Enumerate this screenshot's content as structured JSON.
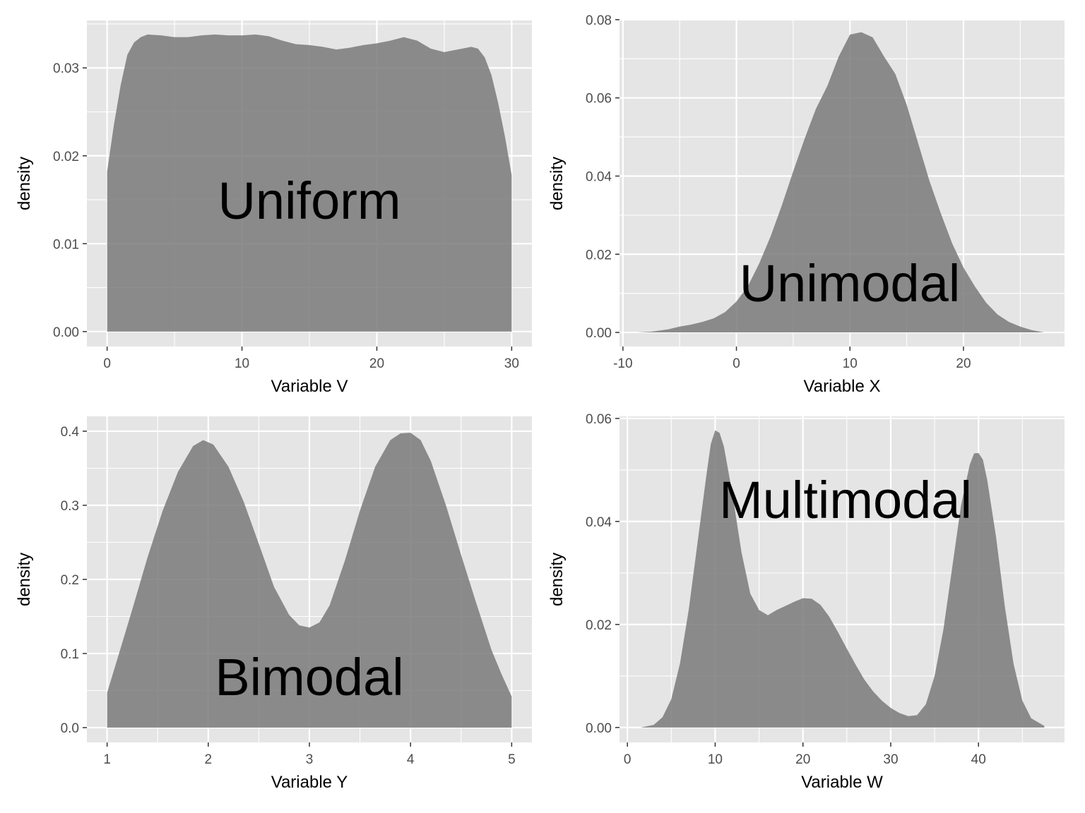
{
  "style": {
    "panel_bg": "#e5e5e5",
    "grid_color": "#ffffff",
    "fill_color": "#7a7a7a",
    "fill_opacity": 0.85,
    "tick_color": "#333333",
    "text_color": "#000000",
    "tick_text_color": "#4d4d4d"
  },
  "chart_data": [
    {
      "type": "area",
      "title": "",
      "xlabel": "Variable V",
      "ylabel": "density",
      "annotation": "Uniform",
      "xlim": [
        -1.5,
        31.5
      ],
      "ylim": [
        -0.0017,
        0.0354
      ],
      "x_ticks": [
        0,
        10,
        20,
        30
      ],
      "x_tick_labels": [
        "0",
        "10",
        "20",
        "30"
      ],
      "y_ticks": [
        0,
        0.01,
        0.02,
        0.03
      ],
      "y_tick_labels": [
        "0.00",
        "0.01",
        "0.02",
        "0.03"
      ],
      "grid": true,
      "series": [
        {
          "x": [
            0,
            0.5,
            1,
            1.5,
            2,
            2.5,
            3,
            4,
            5,
            6,
            7,
            8,
            9,
            10,
            11,
            12,
            13,
            14,
            15,
            16,
            17,
            18,
            19,
            20,
            21,
            22,
            23,
            24,
            25,
            26,
            27,
            27.5,
            28,
            28.5,
            29,
            29.5,
            30
          ],
          "y": [
            0.0182,
            0.0235,
            0.028,
            0.0315,
            0.0329,
            0.0335,
            0.0338,
            0.0337,
            0.0335,
            0.0335,
            0.0337,
            0.0338,
            0.0337,
            0.0337,
            0.0338,
            0.0336,
            0.0331,
            0.0327,
            0.0326,
            0.0324,
            0.0321,
            0.0323,
            0.0326,
            0.0328,
            0.0331,
            0.0335,
            0.0331,
            0.0322,
            0.0318,
            0.0321,
            0.0324,
            0.0322,
            0.0312,
            0.0292,
            0.026,
            0.0222,
            0.0178
          ]
        }
      ]
    },
    {
      "type": "area",
      "title": "",
      "xlabel": "Variable X",
      "ylabel": "density",
      "annotation": "Unimodal",
      "xlim": [
        -10.3,
        28.9
      ],
      "ylim": [
        -0.0036,
        0.0798
      ],
      "x_ticks": [
        -10,
        0,
        10,
        20
      ],
      "x_tick_labels": [
        "-10",
        "0",
        "10",
        "20"
      ],
      "y_ticks": [
        0,
        0.02,
        0.04,
        0.06,
        0.08
      ],
      "y_tick_labels": [
        "0.00",
        "0.02",
        "0.04",
        "0.06",
        "0.08"
      ],
      "grid": true,
      "series": [
        {
          "x": [
            -8.8,
            -7.5,
            -6,
            -5,
            -4,
            -3,
            -2,
            -1,
            0,
            1,
            2,
            3,
            4,
            5,
            6,
            7,
            8,
            9,
            10,
            11,
            12,
            13,
            14,
            15,
            16,
            17,
            18,
            19,
            20,
            21,
            22,
            23,
            24,
            25,
            26,
            27.1
          ],
          "y": [
            0,
            0.0002,
            0.0008,
            0.0015,
            0.002,
            0.0027,
            0.0036,
            0.0052,
            0.0079,
            0.0118,
            0.0176,
            0.0245,
            0.0325,
            0.0412,
            0.0495,
            0.0572,
            0.063,
            0.0705,
            0.0762,
            0.0768,
            0.0755,
            0.0706,
            0.0661,
            0.0582,
            0.0485,
            0.0388,
            0.0305,
            0.0228,
            0.0166,
            0.0118,
            0.0076,
            0.0046,
            0.0027,
            0.0015,
            0.0006,
            0
          ]
        }
      ]
    },
    {
      "type": "area",
      "title": "",
      "xlabel": "Variable Y",
      "ylabel": "density",
      "annotation": "Bimodal",
      "xlim": [
        0.8,
        5.2
      ],
      "ylim": [
        -0.02,
        0.42
      ],
      "x_ticks": [
        1,
        2,
        3,
        4,
        5
      ],
      "x_tick_labels": [
        "1",
        "2",
        "3",
        "4",
        "5"
      ],
      "y_ticks": [
        0,
        0.1,
        0.2,
        0.3,
        0.4
      ],
      "y_tick_labels": [
        "0.0",
        "0.1",
        "0.2",
        "0.3",
        "0.4"
      ],
      "grid": true,
      "series": [
        {
          "x": [
            1,
            1.1,
            1.25,
            1.4,
            1.55,
            1.7,
            1.85,
            1.95,
            2.05,
            2.2,
            2.35,
            2.5,
            2.65,
            2.8,
            2.9,
            3,
            3.1,
            3.2,
            3.35,
            3.5,
            3.65,
            3.8,
            3.9,
            4,
            4.1,
            4.2,
            4.35,
            4.5,
            4.65,
            4.8,
            4.9,
            5
          ],
          "y": [
            0.047,
            0.092,
            0.16,
            0.23,
            0.293,
            0.345,
            0.38,
            0.388,
            0.382,
            0.352,
            0.305,
            0.248,
            0.19,
            0.152,
            0.138,
            0.135,
            0.142,
            0.165,
            0.225,
            0.293,
            0.352,
            0.388,
            0.397,
            0.398,
            0.388,
            0.36,
            0.3,
            0.233,
            0.168,
            0.105,
            0.072,
            0.042
          ]
        }
      ]
    },
    {
      "type": "area",
      "title": "",
      "xlabel": "Variable W",
      "ylabel": "density",
      "annotation": "Multimodal",
      "xlim": [
        -0.9,
        49.8
      ],
      "ylim": [
        -0.0029,
        0.0604
      ],
      "x_ticks": [
        0,
        10,
        20,
        30,
        40
      ],
      "x_tick_labels": [
        "0",
        "10",
        "20",
        "30",
        "40"
      ],
      "y_ticks": [
        0,
        0.02,
        0.04,
        0.06
      ],
      "y_tick_labels": [
        "0.00",
        "0.02",
        "0.04",
        "0.06"
      ],
      "grid": true,
      "series": [
        {
          "x": [
            1.5,
            3,
            4,
            5,
            6,
            7,
            8,
            9,
            9.5,
            10,
            10.5,
            11,
            12,
            13,
            14,
            15,
            16,
            17,
            18,
            19,
            20,
            21,
            22,
            23,
            24,
            25,
            26,
            27,
            28,
            29,
            30,
            31,
            32,
            33,
            34,
            35,
            36,
            37,
            38,
            39,
            39.5,
            40,
            40.5,
            41,
            42,
            43,
            44,
            45,
            46,
            47.5
          ],
          "y": [
            0,
            0.0005,
            0.002,
            0.0055,
            0.0125,
            0.023,
            0.036,
            0.049,
            0.055,
            0.0577,
            0.0572,
            0.0545,
            0.045,
            0.034,
            0.026,
            0.0228,
            0.0218,
            0.0228,
            0.0236,
            0.0244,
            0.0251,
            0.025,
            0.0238,
            0.0215,
            0.0185,
            0.0153,
            0.0122,
            0.0093,
            0.007,
            0.0052,
            0.0038,
            0.0028,
            0.0022,
            0.0024,
            0.0045,
            0.01,
            0.019,
            0.031,
            0.043,
            0.051,
            0.0532,
            0.0533,
            0.052,
            0.048,
            0.037,
            0.0235,
            0.0123,
            0.0052,
            0.0018,
            0.0003
          ]
        }
      ]
    }
  ]
}
